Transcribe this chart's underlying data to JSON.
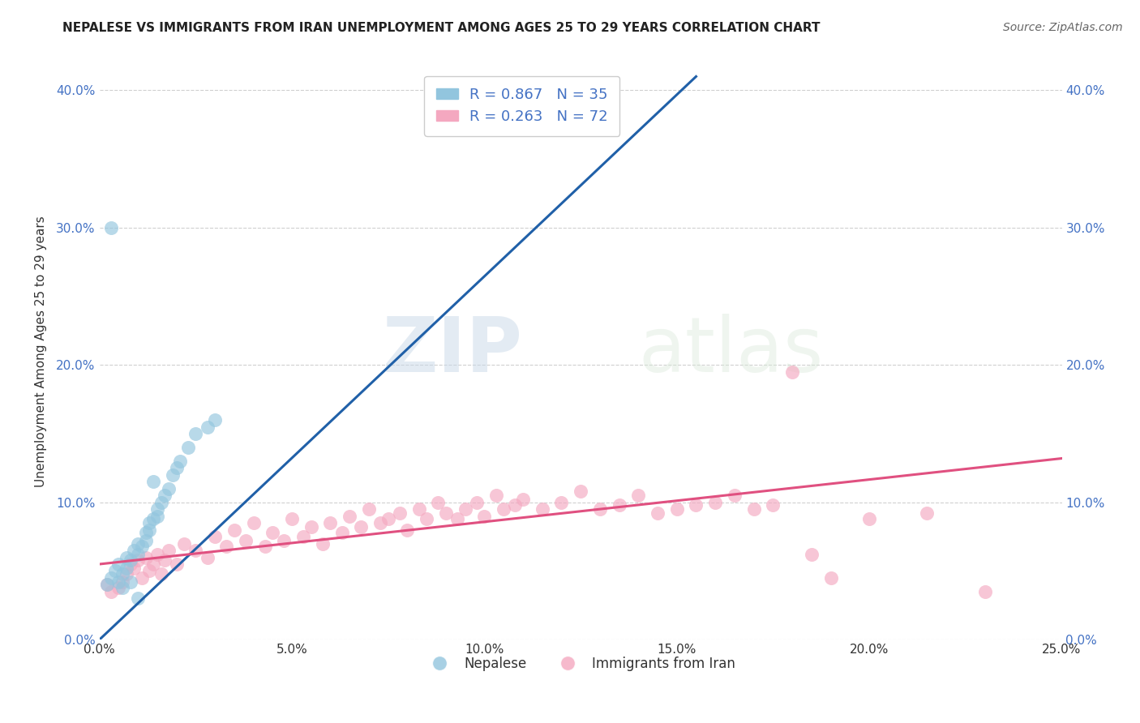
{
  "title": "NEPALESE VS IMMIGRANTS FROM IRAN UNEMPLOYMENT AMONG AGES 25 TO 29 YEARS CORRELATION CHART",
  "source": "Source: ZipAtlas.com",
  "ylabel": "Unemployment Among Ages 25 to 29 years",
  "xlim": [
    0.0,
    0.25
  ],
  "ylim": [
    0.0,
    0.42
  ],
  "xticks": [
    0.0,
    0.05,
    0.1,
    0.15,
    0.2,
    0.25
  ],
  "yticks": [
    0.0,
    0.1,
    0.2,
    0.3,
    0.4
  ],
  "xtick_labels": [
    "0.0%",
    "5.0%",
    "10.0%",
    "15.0%",
    "20.0%",
    "25.0%"
  ],
  "ytick_labels": [
    "0.0%",
    "10.0%",
    "20.0%",
    "30.0%",
    "40.0%"
  ],
  "legend_r_entries": [
    {
      "label": "R = 0.867   N = 35",
      "color": "#92c5de"
    },
    {
      "label": "R = 0.263   N = 72",
      "color": "#f4a8c0"
    }
  ],
  "legend_labels": [
    "Nepalese",
    "Immigrants from Iran"
  ],
  "blue_color": "#92c5de",
  "pink_color": "#f4a8c0",
  "blue_line_color": "#2060a8",
  "pink_line_color": "#e05080",
  "watermark": "ZIPatlas",
  "blue_x": [
    0.002,
    0.003,
    0.004,
    0.005,
    0.005,
    0.006,
    0.007,
    0.007,
    0.008,
    0.009,
    0.01,
    0.01,
    0.011,
    0.012,
    0.012,
    0.013,
    0.013,
    0.014,
    0.015,
    0.015,
    0.016,
    0.017,
    0.018,
    0.019,
    0.02,
    0.021,
    0.023,
    0.025,
    0.028,
    0.03,
    0.014,
    0.008,
    0.006,
    0.003,
    0.01
  ],
  "blue_y": [
    0.04,
    0.045,
    0.05,
    0.042,
    0.055,
    0.048,
    0.052,
    0.06,
    0.058,
    0.065,
    0.062,
    0.07,
    0.068,
    0.072,
    0.078,
    0.08,
    0.085,
    0.088,
    0.09,
    0.095,
    0.1,
    0.105,
    0.11,
    0.12,
    0.125,
    0.13,
    0.14,
    0.15,
    0.155,
    0.16,
    0.115,
    0.042,
    0.038,
    0.3,
    0.03
  ],
  "pink_x": [
    0.002,
    0.003,
    0.005,
    0.006,
    0.007,
    0.008,
    0.009,
    0.01,
    0.011,
    0.012,
    0.013,
    0.014,
    0.015,
    0.016,
    0.017,
    0.018,
    0.02,
    0.022,
    0.025,
    0.028,
    0.03,
    0.033,
    0.035,
    0.038,
    0.04,
    0.043,
    0.045,
    0.048,
    0.05,
    0.053,
    0.055,
    0.058,
    0.06,
    0.063,
    0.065,
    0.068,
    0.07,
    0.073,
    0.075,
    0.078,
    0.08,
    0.083,
    0.085,
    0.088,
    0.09,
    0.093,
    0.095,
    0.098,
    0.1,
    0.103,
    0.105,
    0.108,
    0.11,
    0.115,
    0.12,
    0.125,
    0.13,
    0.135,
    0.14,
    0.145,
    0.15,
    0.155,
    0.16,
    0.165,
    0.17,
    0.175,
    0.18,
    0.185,
    0.19,
    0.2,
    0.215,
    0.23
  ],
  "pink_y": [
    0.04,
    0.035,
    0.038,
    0.042,
    0.048,
    0.055,
    0.052,
    0.058,
    0.045,
    0.06,
    0.05,
    0.055,
    0.062,
    0.048,
    0.058,
    0.065,
    0.055,
    0.07,
    0.065,
    0.06,
    0.075,
    0.068,
    0.08,
    0.072,
    0.085,
    0.068,
    0.078,
    0.072,
    0.088,
    0.075,
    0.082,
    0.07,
    0.085,
    0.078,
    0.09,
    0.082,
    0.095,
    0.085,
    0.088,
    0.092,
    0.08,
    0.095,
    0.088,
    0.1,
    0.092,
    0.088,
    0.095,
    0.1,
    0.09,
    0.105,
    0.095,
    0.098,
    0.102,
    0.095,
    0.1,
    0.108,
    0.095,
    0.098,
    0.105,
    0.092,
    0.095,
    0.098,
    0.1,
    0.105,
    0.095,
    0.098,
    0.195,
    0.062,
    0.045,
    0.088,
    0.092,
    0.035
  ],
  "blue_line_x": [
    0.0,
    0.155
  ],
  "blue_line_y": [
    0.0,
    0.41
  ],
  "pink_line_x": [
    0.0,
    0.25
  ],
  "pink_line_y": [
    0.055,
    0.132
  ],
  "background_color": "#ffffff",
  "grid_color": "#d0d0d0"
}
